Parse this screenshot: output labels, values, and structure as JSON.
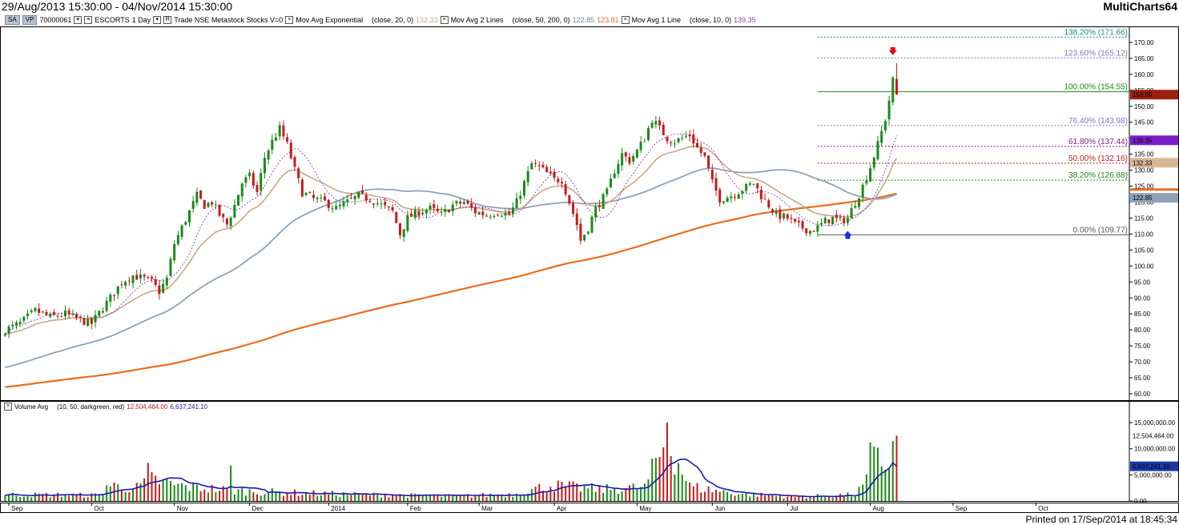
{
  "header": {
    "date_range": "29/Aug/2013 15:30:00 - 04/Nov/2014 15:30:00",
    "app_name": "MultiCharts64",
    "printed": "Printed on 17/Sep/2014 at 18:45:34"
  },
  "info_bar": {
    "chip1": "SA",
    "chip2": "VP",
    "code": "70000061",
    "symbol": "ESCORTS",
    "interval": "1 Day",
    "rest": "Trade NSE Metastock Stocks V=0",
    "ind1_name": "Mov Avg Exponential",
    "ind1_params": "(close, 20, 0)",
    "ind1_value": "132.33",
    "ind2_name": "Mov Avg 2 Lines",
    "ind2_params": "(close, 50, 200, 0)",
    "ind2_value1": "122.85",
    "ind2_value2": "123.81",
    "ind3_name": "Mov Avg 1 Line",
    "ind3_params": "(close, 10, 0)",
    "ind3_value": "139.35"
  },
  "volume_bar": {
    "name": "Volume Avg",
    "params": "(10, 50, darkgreen, red)",
    "value1": "12,504,464.00",
    "value2": "6,637,241.10"
  },
  "chart_data": {
    "type": "candlestick",
    "x_range": [
      "29/Aug/2013",
      "04/Nov/2014"
    ],
    "x_ticks": [
      "Sep",
      "Oct",
      "Nov",
      "Dec",
      "2014",
      "Feb",
      "Mar",
      "Apr",
      "May",
      "Jun",
      "Jul",
      "Aug",
      "Sep",
      "Oct"
    ],
    "price_axis": {
      "ylim": [
        58,
        175
      ],
      "ticks": [
        "170.00",
        "165.00",
        "160.00",
        "155.00",
        "150.00",
        "145.00",
        "140.00",
        "135.00",
        "130.00",
        "125.00",
        "120.00",
        "115.00",
        "110.00",
        "105.00",
        "100.00",
        "95.00",
        "90.00",
        "85.00",
        "80.00",
        "75.00",
        "70.00",
        "65.00",
        "60.00"
      ]
    },
    "volume_axis": {
      "ylim": [
        0,
        17000000
      ],
      "ticks": [
        "15,000,000.00",
        "10,000,000.00",
        "5,000,000.00",
        "0.00"
      ]
    },
    "price_anchors": [
      [
        0,
        80
      ],
      [
        4,
        82
      ],
      [
        8,
        86
      ],
      [
        12,
        84
      ],
      [
        16,
        85
      ],
      [
        20,
        83
      ],
      [
        23,
        82
      ],
      [
        26,
        87
      ],
      [
        28,
        90
      ],
      [
        31,
        95
      ],
      [
        34,
        97
      ],
      [
        37,
        96
      ],
      [
        39,
        95
      ],
      [
        41,
        92
      ],
      [
        43,
        96
      ],
      [
        45,
        107
      ],
      [
        47,
        112
      ],
      [
        49,
        117
      ],
      [
        51,
        122
      ],
      [
        53,
        119
      ],
      [
        55,
        120
      ],
      [
        57,
        116
      ],
      [
        59,
        113
      ],
      [
        61,
        119
      ],
      [
        63,
        126
      ],
      [
        65,
        128
      ],
      [
        67,
        123
      ],
      [
        69,
        134
      ],
      [
        71,
        139
      ],
      [
        73,
        143
      ],
      [
        75,
        138
      ],
      [
        77,
        130
      ],
      [
        79,
        123
      ],
      [
        82,
        121
      ],
      [
        85,
        120
      ],
      [
        88,
        118
      ],
      [
        91,
        120
      ],
      [
        94,
        122
      ],
      [
        97,
        121
      ],
      [
        100,
        119
      ],
      [
        103,
        117
      ],
      [
        105,
        110
      ],
      [
        107,
        115
      ],
      [
        110,
        117
      ],
      [
        113,
        118
      ],
      [
        116,
        116
      ],
      [
        119,
        119
      ],
      [
        122,
        120
      ],
      [
        125,
        117
      ],
      [
        128,
        116
      ],
      [
        131,
        117
      ],
      [
        134,
        116
      ],
      [
        136,
        120
      ],
      [
        138,
        126
      ],
      [
        140,
        132
      ],
      [
        142,
        131
      ],
      [
        144,
        129
      ],
      [
        146,
        127
      ],
      [
        148,
        127
      ],
      [
        150,
        120
      ],
      [
        152,
        113
      ],
      [
        153,
        108
      ],
      [
        155,
        112
      ],
      [
        157,
        118
      ],
      [
        160,
        123
      ],
      [
        162,
        130
      ],
      [
        164,
        135
      ],
      [
        166,
        133
      ],
      [
        168,
        136
      ],
      [
        170,
        140
      ],
      [
        172,
        146
      ],
      [
        174,
        143
      ],
      [
        176,
        140
      ],
      [
        178,
        139
      ],
      [
        180,
        140
      ],
      [
        182,
        141
      ],
      [
        184,
        137
      ],
      [
        186,
        134
      ],
      [
        188,
        126
      ],
      [
        190,
        121
      ],
      [
        193,
        122
      ],
      [
        196,
        124
      ],
      [
        199,
        126
      ],
      [
        201,
        122
      ],
      [
        203,
        119
      ],
      [
        205,
        116
      ],
      [
        208,
        115
      ],
      [
        210,
        113
      ],
      [
        212,
        112
      ],
      [
        214,
        111
      ],
      [
        216,
        112
      ],
      [
        218,
        114
      ],
      [
        220,
        115
      ],
      [
        222,
        114
      ],
      [
        224,
        115
      ],
      [
        226,
        120
      ],
      [
        228,
        125
      ],
      [
        230,
        131
      ],
      [
        232,
        138
      ],
      [
        234,
        146
      ],
      [
        236,
        158
      ],
      [
        237,
        154
      ]
    ],
    "volume_anchors": [
      [
        0,
        1200000
      ],
      [
        25,
        1100000
      ],
      [
        27,
        3000000
      ],
      [
        35,
        2500000
      ],
      [
        39,
        4200000
      ],
      [
        45,
        3000000
      ],
      [
        60,
        2000000
      ],
      [
        75,
        1600000
      ],
      [
        95,
        1200000
      ],
      [
        120,
        900000
      ],
      [
        135,
        1300000
      ],
      [
        145,
        3000000
      ],
      [
        158,
        2200000
      ],
      [
        170,
        2600000
      ],
      [
        176,
        11800000
      ],
      [
        182,
        2800000
      ],
      [
        187,
        2200000
      ],
      [
        195,
        1400000
      ],
      [
        210,
        800000
      ],
      [
        226,
        1200000
      ],
      [
        230,
        4500000
      ],
      [
        232,
        11000000
      ],
      [
        234,
        6000000
      ],
      [
        235,
        8300000
      ],
      [
        236,
        9400000
      ],
      [
        237,
        12504464
      ]
    ],
    "volume_spikes": [
      [
        38,
        7300000
      ],
      [
        60,
        6800000
      ],
      [
        176,
        15000000
      ],
      [
        230,
        11200000
      ],
      [
        237,
        12504464
      ]
    ],
    "series": [
      {
        "name": "Mov Avg Exponential",
        "params": "(close, 20, 0)",
        "last": 132.33,
        "color": "#c8a88a"
      },
      {
        "name": "Mov Avg 2 Lines",
        "params": "(close, 50, 0)",
        "last": 122.85,
        "color": "#8ea3b8"
      },
      {
        "name": "Mov Avg 2 Lines",
        "params": "(close, 200, 0)",
        "last": 123.81,
        "color": "#ea6d1d"
      },
      {
        "name": "Mov Avg 1 Line",
        "params": "(close, 10, 0)",
        "last": 139.35,
        "color": "#8a3bb8"
      },
      {
        "name": "Volume Avg",
        "params": "(10, 50, darkgreen, red)",
        "last": 6637241.1,
        "color": "#1a1aa8"
      }
    ],
    "last_price": "153.65",
    "fibonacci": {
      "bar_start": 216,
      "levels": [
        {
          "label": "138.20% (171.66)",
          "price": 171.66,
          "color": "#1a8a8a"
        },
        {
          "label": "123.60% (165.12)",
          "price": 165.12,
          "color": "#7a7ac8"
        },
        {
          "label": "100.00% (154.55)",
          "price": 154.55,
          "color": "#1a8a1a"
        },
        {
          "label": "76.40% (143.98)",
          "price": 143.98,
          "color": "#7a7ac8"
        },
        {
          "label": "61.80% (137.44)",
          "price": 137.44,
          "color": "#8a1a8a"
        },
        {
          "label": "50.00% (132.16)",
          "price": 132.16,
          "color": "#c81a1a"
        },
        {
          "label": "38.20% (126.88)",
          "price": 126.88,
          "color": "#1a8a1a"
        },
        {
          "label": "0.00% (109.77)",
          "price": 109.77,
          "color": "#555555"
        }
      ]
    },
    "markers": [
      {
        "type": "down-arrow",
        "bar": 236,
        "price": 167,
        "color": "#e01010"
      },
      {
        "type": "up-arrow",
        "bar": 224,
        "price": 110,
        "color": "#1030e0"
      }
    ],
    "candle_colors": {
      "up": "#1a8a1a",
      "down": "#c81a1a"
    }
  }
}
